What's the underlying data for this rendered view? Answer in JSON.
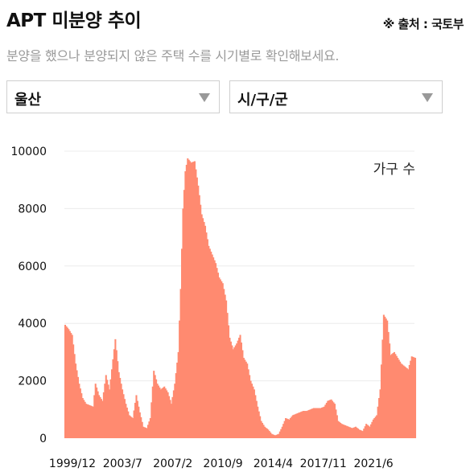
{
  "header": {
    "title": "APT 미분양 추이",
    "source": "※ 출처 : 국토부",
    "subtitle": "분양을 했으나 분양되지 않은 주택 수를 시기별로 확인해보세요."
  },
  "filters": {
    "region": "울산",
    "district": "시/구/군"
  },
  "icons": {
    "dropdown": "chevron-down-icon"
  },
  "colors": {
    "bar": "#ff8a70",
    "grid": "#ececec"
  },
  "chart_data": {
    "type": "bar",
    "unit_label": "가구 수",
    "ylim": [
      0,
      10000
    ],
    "y_ticks": [
      0,
      2000,
      4000,
      6000,
      8000,
      10000
    ],
    "x_tick_labels": [
      "1999/12",
      "2003/7",
      "2007/2",
      "2010/9",
      "2014/4",
      "2017/11",
      "2021/6"
    ],
    "x_start": "1999/12",
    "x_end": "2024/12",
    "grid": true,
    "series": [
      {
        "name": "가구 수",
        "keypoints": [
          [
            "1999/12",
            3950
          ],
          [
            "2000/3",
            3800
          ],
          [
            "2000/6",
            3600
          ],
          [
            "2000/9",
            2600
          ],
          [
            "2000/12",
            1900
          ],
          [
            "2001/3",
            1400
          ],
          [
            "2001/6",
            1200
          ],
          [
            "2001/9",
            1150
          ],
          [
            "2001/12",
            1100
          ],
          [
            "2002/2",
            1900
          ],
          [
            "2002/5",
            1500
          ],
          [
            "2002/8",
            1300
          ],
          [
            "2002/11",
            2200
          ],
          [
            "2003/2",
            1700
          ],
          [
            "2003/4",
            2400
          ],
          [
            "2003/7",
            3450
          ],
          [
            "2003/10",
            2300
          ],
          [
            "2004/1",
            1700
          ],
          [
            "2004/4",
            1200
          ],
          [
            "2004/7",
            800
          ],
          [
            "2004/10",
            700
          ],
          [
            "2005/1",
            1500
          ],
          [
            "2005/4",
            900
          ],
          [
            "2005/7",
            400
          ],
          [
            "2005/10",
            350
          ],
          [
            "2006/1",
            700
          ],
          [
            "2006/4",
            2350
          ],
          [
            "2006/7",
            1900
          ],
          [
            "2006/10",
            1700
          ],
          [
            "2007/1",
            1800
          ],
          [
            "2007/4",
            1600
          ],
          [
            "2007/7",
            1200
          ],
          [
            "2007/10",
            1900
          ],
          [
            "2008/1",
            3000
          ],
          [
            "2008/3",
            5200
          ],
          [
            "2008/5",
            8000
          ],
          [
            "2008/7",
            9300
          ],
          [
            "2008/9",
            9750
          ],
          [
            "2008/12",
            9600
          ],
          [
            "2009/3",
            9650
          ],
          [
            "2009/6",
            8800
          ],
          [
            "2009/9",
            7800
          ],
          [
            "2009/12",
            7400
          ],
          [
            "2010/3",
            6700
          ],
          [
            "2010/6",
            6400
          ],
          [
            "2010/9",
            6100
          ],
          [
            "2010/12",
            5600
          ],
          [
            "2011/3",
            5400
          ],
          [
            "2011/6",
            4800
          ],
          [
            "2011/9",
            3500
          ],
          [
            "2011/12",
            3100
          ],
          [
            "2012/3",
            3300
          ],
          [
            "2012/6",
            3600
          ],
          [
            "2012/9",
            2800
          ],
          [
            "2012/12",
            2600
          ],
          [
            "2013/3",
            2000
          ],
          [
            "2013/6",
            1700
          ],
          [
            "2013/9",
            1100
          ],
          [
            "2013/12",
            600
          ],
          [
            "2014/3",
            400
          ],
          [
            "2014/6",
            300
          ],
          [
            "2014/9",
            150
          ],
          [
            "2014/12",
            100
          ],
          [
            "2015/3",
            150
          ],
          [
            "2015/6",
            400
          ],
          [
            "2015/9",
            700
          ],
          [
            "2015/12",
            650
          ],
          [
            "2016/3",
            800
          ],
          [
            "2016/6",
            850
          ],
          [
            "2016/9",
            900
          ],
          [
            "2016/12",
            950
          ],
          [
            "2017/3",
            950
          ],
          [
            "2017/6",
            1000
          ],
          [
            "2017/9",
            1050
          ],
          [
            "2017/12",
            1050
          ],
          [
            "2018/3",
            1050
          ],
          [
            "2018/6",
            1100
          ],
          [
            "2018/9",
            1300
          ],
          [
            "2018/12",
            1350
          ],
          [
            "2019/3",
            1200
          ],
          [
            "2019/6",
            600
          ],
          [
            "2019/9",
            500
          ],
          [
            "2019/12",
            450
          ],
          [
            "2020/3",
            400
          ],
          [
            "2020/6",
            350
          ],
          [
            "2020/9",
            400
          ],
          [
            "2020/12",
            300
          ],
          [
            "2021/3",
            250
          ],
          [
            "2021/6",
            500
          ],
          [
            "2021/9",
            400
          ],
          [
            "2021/12",
            650
          ],
          [
            "2022/3",
            800
          ],
          [
            "2022/6",
            1700
          ],
          [
            "2022/9",
            4300
          ],
          [
            "2022/12",
            4100
          ],
          [
            "2023/3",
            2900
          ],
          [
            "2023/6",
            3000
          ],
          [
            "2023/9",
            2800
          ],
          [
            "2023/12",
            2600
          ],
          [
            "2024/3",
            2500
          ],
          [
            "2024/6",
            2400
          ],
          [
            "2024/9",
            2850
          ],
          [
            "2024/12",
            2800
          ]
        ]
      }
    ]
  }
}
